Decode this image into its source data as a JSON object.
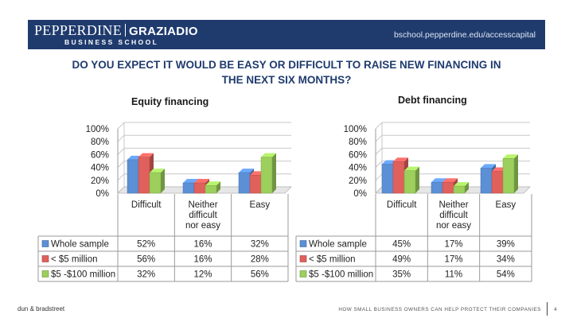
{
  "header": {
    "logo_main": "PEPPERDINE",
    "logo_brand": "GRAZIADIO",
    "logo_sub": "BUSINESS SCHOOL",
    "url": "bschool.pepperdine.edu/accesscapital"
  },
  "headline": {
    "line1": "DO YOU EXPECT IT WOULD BE EASY OR DIFFICULT TO RAISE NEW FINANCING IN",
    "line2": "THE NEXT SIX MONTHS?"
  },
  "colors": {
    "banner": "#1f3b6e",
    "headline": "#1f3b6e",
    "series": [
      "#5b8fd6",
      "#e0605c",
      "#9ccf5c"
    ]
  },
  "chart_data": [
    {
      "type": "bar",
      "title": "Equity financing",
      "categories": [
        "Difficult",
        "Neither difficult nor easy",
        "Easy"
      ],
      "category_lines": [
        [
          "Difficult"
        ],
        [
          "Neither",
          "difficult",
          "nor easy"
        ],
        [
          "Easy"
        ]
      ],
      "series": [
        {
          "name": "Whole sample",
          "values": [
            52,
            16,
            32
          ],
          "labels": [
            "52%",
            "16%",
            "32%"
          ]
        },
        {
          "name": "< $5 million",
          "values": [
            56,
            16,
            28
          ],
          "labels": [
            "56%",
            "16%",
            "28%"
          ]
        },
        {
          "name": "$5 -$100 million",
          "values": [
            32,
            12,
            56
          ],
          "labels": [
            "32%",
            "12%",
            "56%"
          ]
        }
      ],
      "ylim": [
        0,
        100
      ],
      "yticks": [
        "0%",
        "20%",
        "40%",
        "60%",
        "80%",
        "100%"
      ],
      "grid": true,
      "legend": "data table"
    },
    {
      "type": "bar",
      "title": "Debt financing",
      "categories": [
        "Difficult",
        "Neither difficult nor easy",
        "Easy"
      ],
      "category_lines": [
        [
          "Difficult"
        ],
        [
          "Neither",
          "difficult",
          "nor easy"
        ],
        [
          "Easy"
        ]
      ],
      "series": [
        {
          "name": "Whole sample",
          "values": [
            45,
            17,
            39
          ],
          "labels": [
            "45%",
            "17%",
            "39%"
          ]
        },
        {
          "name": "< $5 million",
          "values": [
            49,
            17,
            34
          ],
          "labels": [
            "49%",
            "17%",
            "34%"
          ]
        },
        {
          "name": "$5 -$100 million",
          "values": [
            35,
            11,
            54
          ],
          "labels": [
            "35%",
            "11%",
            "54%"
          ]
        }
      ],
      "ylim": [
        0,
        100
      ],
      "yticks": [
        "0%",
        "20%",
        "40%",
        "60%",
        "80%",
        "100%"
      ],
      "grid": true,
      "legend": "data table"
    }
  ],
  "footer": {
    "left": "dun & bradstreet",
    "right": "HOW SMALL BUSINESS OWNERS CAN HELP PROTECT THEIR COMPANIES",
    "page": "4"
  }
}
